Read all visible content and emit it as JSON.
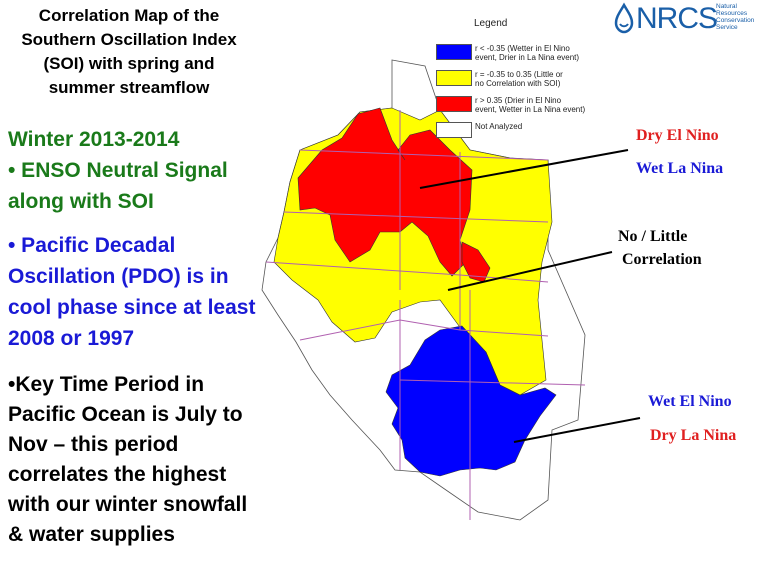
{
  "title_lines": [
    "Correlation Map of the",
    "Southern Oscillation Index",
    "(SOI) with spring and",
    "summer streamflow"
  ],
  "heading_lines": [
    "Winter 2013-2014",
    "• ENSO Neutral Signal",
    "along with SOI"
  ],
  "pdo_lines": [
    "• Pacific Decadal",
    "Oscillation (PDO) is in",
    "cool phase since at least",
    "2008 or 1997"
  ],
  "key_lines": [
    "•Key Time Period in",
    "Pacific Ocean is July to",
    "Nov – this period",
    "correlates the highest",
    "with our winter snowfall",
    "& water supplies"
  ],
  "legend": {
    "title": "Legend",
    "items": [
      {
        "color": "#0000ff",
        "lines": [
          "r < -0.35 (Wetter in El Nino",
          "event, Drier in La Nina event)"
        ]
      },
      {
        "color": "#ffff00",
        "lines": [
          "r = -0.35 to 0.35 (Little or",
          "no Correlation with SOI)"
        ]
      },
      {
        "color": "#ff0000",
        "lines": [
          "r > 0.35 (Drier in El Nino",
          "event, Wetter in La Nina event)"
        ]
      },
      {
        "color": "#ffffff",
        "lines": [
          "Not Analyzed"
        ]
      }
    ]
  },
  "logo": {
    "text": "NRCS",
    "sub_lines": [
      "Natural",
      "Resources",
      "Conservation",
      "Service"
    ]
  },
  "annotations": {
    "dry_el_nino": "Dry El Nino",
    "wet_la_nina": "Wet La Nina",
    "no_little_1": "No / Little",
    "no_little_2": "Correlation",
    "wet_el_nino": "Wet El Nino",
    "dry_la_nina": "Dry La Nina"
  },
  "colors": {
    "red": "#ff0000",
    "yellow": "#ffff00",
    "blue": "#0000ff",
    "state_line": "#b060b0"
  }
}
